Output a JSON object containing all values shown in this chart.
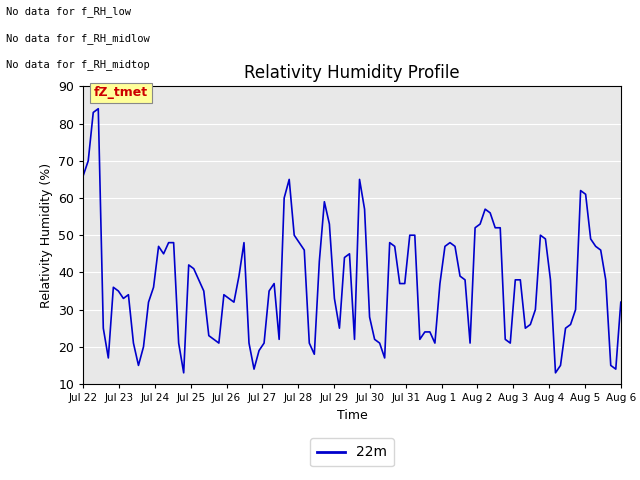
{
  "title": "Relativity Humidity Profile",
  "xlabel": "Time",
  "ylabel": "Relativity Humidity (%)",
  "ylim": [
    10,
    90
  ],
  "yticks": [
    10,
    20,
    30,
    40,
    50,
    60,
    70,
    80,
    90
  ],
  "line_color": "#0000cc",
  "line_width": 1.2,
  "legend_label": "22m",
  "legend_line_color": "#0000cc",
  "bg_color": "#e8e8e8",
  "annotations": [
    "No data for f_RH_low",
    "No data for f_RH_midlow",
    "No data for f_RH_midtop"
  ],
  "fz_tmet_label": "fZ_tmet",
  "fz_tmet_color": "#cc0000",
  "fz_tmet_bg": "#ffff99",
  "xtick_labels": [
    "Jul 22",
    "Jul 23",
    "Jul 24",
    "Jul 25",
    "Jul 26",
    "Jul 27",
    "Jul 28",
    "Jul 29",
    "Jul 30",
    "Jul 31",
    "Aug 1",
    "Aug 2",
    "Aug 3",
    "Aug 4",
    "Aug 5",
    "Aug 6"
  ],
  "y_values": [
    66,
    70,
    83,
    84,
    25,
    17,
    36,
    35,
    33,
    34,
    21,
    15,
    20,
    32,
    36,
    47,
    45,
    48,
    48,
    21,
    13,
    42,
    41,
    38,
    35,
    23,
    22,
    21,
    34,
    33,
    32,
    39,
    48,
    21,
    14,
    19,
    21,
    35,
    37,
    22,
    60,
    65,
    50,
    48,
    46,
    21,
    18,
    43,
    59,
    53,
    33,
    25,
    44,
    45,
    22,
    65,
    57,
    28,
    22,
    21,
    17,
    48,
    47,
    37,
    37,
    50,
    50,
    22,
    24,
    24,
    21,
    37,
    47,
    48,
    47,
    39,
    38,
    21,
    52,
    53,
    57,
    56,
    52,
    52,
    22,
    21,
    38,
    38,
    25,
    26,
    30,
    50,
    49,
    38,
    13,
    15,
    25,
    26,
    30,
    62,
    61,
    49,
    47,
    46,
    38,
    15,
    14,
    32
  ]
}
